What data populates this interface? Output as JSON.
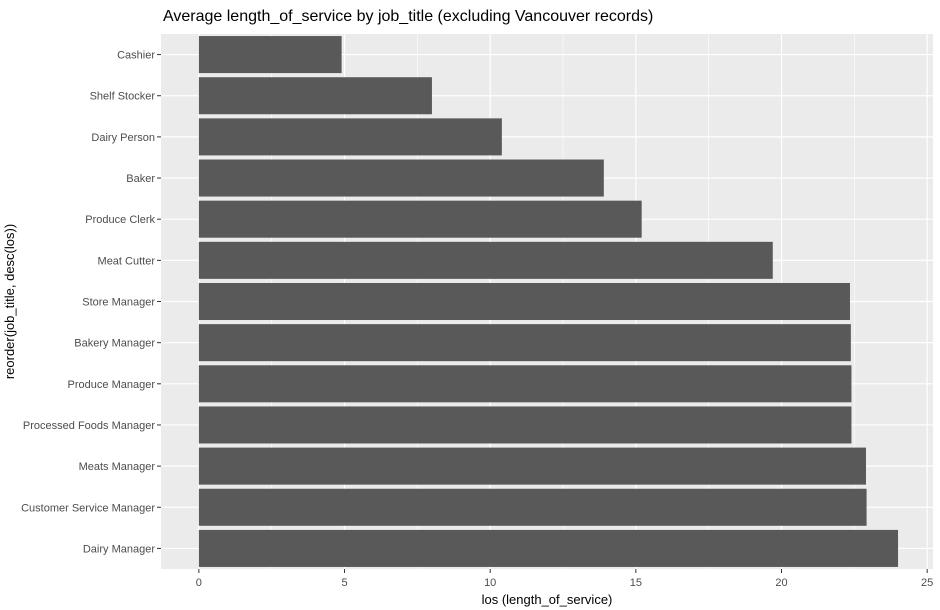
{
  "chart_data": {
    "type": "bar",
    "orientation": "horizontal",
    "title": "Average length_of_service by job_title (excluding Vancouver records)",
    "xlabel": "los (length_of_service)",
    "ylabel": "reorder(job_title, desc(los))",
    "xlim": [
      -1.3,
      25.2
    ],
    "x_ticks": [
      0,
      5,
      10,
      15,
      20,
      25
    ],
    "grid": true,
    "bar_color": "#595959",
    "panel_background": "#ebebeb",
    "categories": [
      "Cashier",
      "Shelf Stocker",
      "Dairy Person",
      "Baker",
      "Produce Clerk",
      "Meat Cutter",
      "Store Manager",
      "Bakery Manager",
      "Produce Manager",
      "Processed Foods Manager",
      "Meats Manager",
      "Customer Service Manager",
      "Dairy Manager"
    ],
    "values": [
      4.9,
      8.0,
      10.4,
      13.9,
      15.2,
      19.7,
      22.35,
      22.38,
      22.4,
      22.4,
      22.9,
      22.92,
      24.0
    ]
  }
}
